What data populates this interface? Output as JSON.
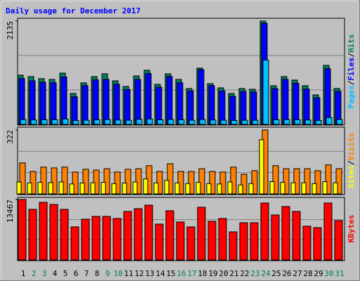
{
  "chart_data": [
    {
      "type": "bar",
      "title": "Daily usage for December 2017",
      "categories": [
        1,
        2,
        3,
        4,
        5,
        6,
        7,
        8,
        9,
        10,
        11,
        12,
        13,
        14,
        15,
        16,
        17,
        18,
        19,
        20,
        21,
        22,
        23,
        24,
        25,
        26,
        27,
        28,
        29,
        30,
        31
      ],
      "category_colors": [
        "#000000",
        "#00805c",
        "#00805c",
        "#000000",
        "#000000",
        "#000000",
        "#000000",
        "#000000",
        "#00805c",
        "#00805c",
        "#000000",
        "#000000",
        "#000000",
        "#000000",
        "#000000",
        "#00805c",
        "#00805c",
        "#000000",
        "#000000",
        "#000000",
        "#000000",
        "#000000",
        "#00805c",
        "#00805c",
        "#000000",
        "#000000",
        "#000000",
        "#000000",
        "#000000",
        "#00805c",
        "#00805c"
      ],
      "legend_separator": "/",
      "series": [
        {
          "name": "Hits",
          "color": "#00805c",
          "values": [
            1017,
            987,
            944,
            929,
            1060,
            639,
            857,
            987,
            1045,
            900,
            784,
            1002,
            1118,
            828,
            1045,
            929,
            741,
            1162,
            842,
            755,
            639,
            741,
            726,
            2135,
            799,
            987,
            915,
            799,
            610,
            1220,
            741
          ]
        },
        {
          "name": "Files",
          "color": "#0000ff",
          "values": [
            947,
            900,
            870,
            860,
            980,
            570,
            800,
            920,
            930,
            830,
            720,
            930,
            1050,
            770,
            990,
            860,
            690,
            1130,
            800,
            690,
            580,
            680,
            670,
            2090,
            740,
            930,
            850,
            730,
            550,
            1150,
            680
          ]
        },
        {
          "name": "Pages",
          "color": "#00c0ff",
          "values": [
            100,
            90,
            95,
            95,
            110,
            80,
            85,
            95,
            100,
            90,
            85,
            105,
            110,
            95,
            100,
            95,
            85,
            100,
            90,
            85,
            80,
            85,
            85,
            1330,
            95,
            100,
            95,
            90,
            80,
            140,
            100
          ]
        }
      ],
      "ylim": [
        0,
        2135
      ],
      "yticks": [
        2135
      ]
    },
    {
      "type": "bar",
      "series": [
        {
          "name": "Visits",
          "color": "#ff8000",
          "values": [
            156,
            113,
            135,
            131,
            135,
            110,
            124,
            120,
            127,
            110,
            124,
            127,
            142,
            113,
            152,
            113,
            113,
            127,
            113,
            110,
            135,
            99,
            117,
            322,
            142,
            127,
            127,
            127,
            117,
            146,
            127
          ]
        },
        {
          "name": "Sites",
          "color": "#ffff00",
          "values": [
            60,
            55,
            58,
            57,
            60,
            50,
            55,
            56,
            58,
            52,
            55,
            60,
            75,
            55,
            68,
            55,
            52,
            58,
            52,
            50,
            60,
            45,
            52,
            273,
            62,
            58,
            56,
            56,
            52,
            62,
            56
          ]
        }
      ],
      "ylim": [
        0,
        322
      ],
      "yticks": [
        322
      ]
    },
    {
      "type": "bar",
      "series": [
        {
          "name": "KBytes",
          "color": "#ff0000",
          "values": [
            13467,
            11275,
            12841,
            12371,
            11275,
            7360,
            9083,
            9710,
            9710,
            9240,
            10806,
            11432,
            12215,
            7987,
            10962,
            8457,
            7360,
            11745,
            8613,
            9240,
            6264,
            8300,
            8300,
            12684,
            10023,
            11902,
            10806,
            7517,
            7204,
            12684,
            8770
          ]
        }
      ],
      "ylim": [
        0,
        13467
      ],
      "yticks": [
        13467
      ]
    }
  ]
}
